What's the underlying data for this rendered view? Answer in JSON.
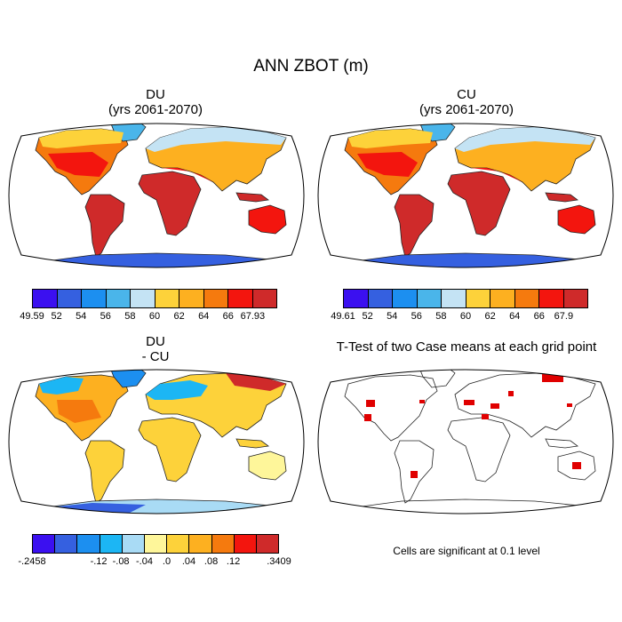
{
  "title": "ANN ZBOT (m)",
  "panels": [
    {
      "id": "du",
      "title_line1": "DU",
      "title_line2": "(yrs 2061-2070)"
    },
    {
      "id": "cu",
      "title_line1": "CU",
      "title_line2": "(yrs 2061-2070)"
    },
    {
      "id": "diff",
      "title_line1": "DU",
      "title_line2": "- CU"
    },
    {
      "id": "ttest",
      "title_line1": "T-Test of two Case means at each grid point",
      "title_line2": ""
    }
  ],
  "colorbars": {
    "du": {
      "colors": [
        "#3b10f0",
        "#3560e0",
        "#1c8ff0",
        "#4ab5ea",
        "#c4e3f4",
        "#fdd23a",
        "#fdb020",
        "#f57a0e",
        "#f3150e",
        "#cf2a2a"
      ],
      "labels": [
        "49.59",
        "52",
        "54",
        "56",
        "58",
        "60",
        "62",
        "64",
        "66",
        "67.93"
      ]
    },
    "cu": {
      "colors": [
        "#3b10f0",
        "#3560e0",
        "#1c8ff0",
        "#4ab5ea",
        "#c4e3f4",
        "#fdd23a",
        "#fdb020",
        "#f57a0e",
        "#f3150e",
        "#cf2a2a"
      ],
      "labels": [
        "49.61",
        "52",
        "54",
        "56",
        "58",
        "60",
        "62",
        "64",
        "66",
        "67.9"
      ]
    },
    "diff": {
      "colors": [
        "#3b10f0",
        "#3560e0",
        "#1c8ff0",
        "#1cb6f4",
        "#a9dbf5",
        "#fef69a",
        "#fdd23a",
        "#fdb020",
        "#f57a0e",
        "#f3150e",
        "#cf2a2a"
      ],
      "labels": [
        "-.2458",
        "-.12",
        "-.08",
        "-.04",
        ".0",
        ".04",
        ".08",
        ".12",
        ".3409"
      ]
    }
  },
  "ttest_note": "Cells are significant at 0.1 level"
}
